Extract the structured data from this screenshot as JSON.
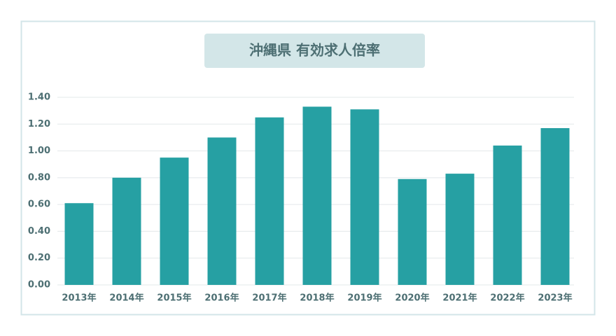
{
  "chart_data": {
    "type": "bar",
    "title": "沖縄県 有効求人倍率",
    "categories": [
      "2013年",
      "2014年",
      "2015年",
      "2016年",
      "2017年",
      "2018年",
      "2019年",
      "2020年",
      "2021年",
      "2022年",
      "2023年"
    ],
    "values": [
      0.61,
      0.8,
      0.95,
      1.1,
      1.25,
      1.33,
      1.31,
      0.79,
      0.83,
      1.04,
      1.17
    ],
    "color": "#26a0a3",
    "ylim": [
      0,
      1.4
    ],
    "yticks": [
      {
        "value": 0,
        "label": "0.00"
      },
      {
        "value": 0.2,
        "label": "0.20"
      },
      {
        "value": 0.4,
        "label": "0.40"
      },
      {
        "value": 0.6,
        "label": "0.60"
      },
      {
        "value": 0.8,
        "label": "0.80"
      },
      {
        "value": 1.0,
        "label": "1.00"
      },
      {
        "value": 1.2,
        "label": "1.20"
      },
      {
        "value": 1.4,
        "label": "1.40"
      }
    ],
    "grid": true
  }
}
